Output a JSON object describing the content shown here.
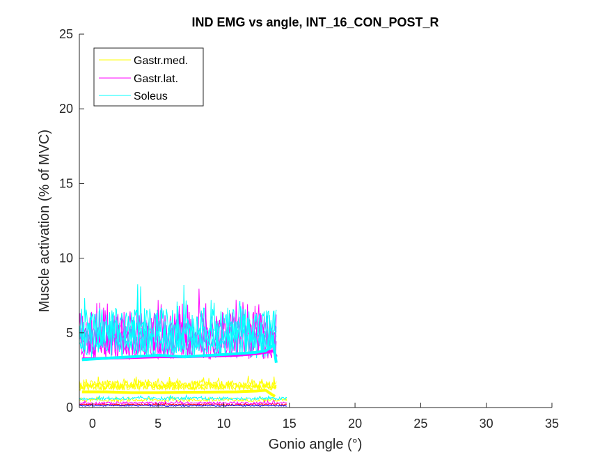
{
  "chart_data": {
    "type": "line",
    "title": "IND EMG vs angle, INT_16_CON_POST_R",
    "xlabel": "Gonio angle (°)",
    "ylabel": "Muscle activation (% of MVC)",
    "xlim": [
      -1,
      35
    ],
    "ylim": [
      0,
      25
    ],
    "xticks": [
      0,
      5,
      10,
      15,
      20,
      25,
      30,
      35
    ],
    "yticks": [
      0,
      5,
      10,
      15,
      20,
      25
    ],
    "grid": false,
    "legend_position": "top-left",
    "series": [
      {
        "name": "Gastr.med.",
        "color": "#ffff00",
        "mean_x": [
          -0.8,
          1,
          3,
          5,
          7,
          9,
          11,
          12.5,
          13.2,
          13.7,
          13.9
        ],
        "mean_y": [
          1.05,
          1.05,
          1.0,
          1.0,
          1.02,
          1.03,
          1.05,
          1.1,
          1.15,
          0.85,
          0.75
        ],
        "noisy_traces": [
          {
            "level": 1.55,
            "amp": 0.25,
            "x_end": 14.0
          },
          {
            "level": 1.45,
            "amp": 0.25,
            "x_end": 14.0
          },
          {
            "level": 1.35,
            "amp": 0.2,
            "x_end": 14.0
          },
          {
            "level": 0.5,
            "amp": 0.1,
            "x_end": 14.8
          }
        ]
      },
      {
        "name": "Gastr.lat.",
        "color": "#ff00ff",
        "mean_x": [
          -0.8,
          1,
          3,
          5,
          7,
          9,
          11,
          12.5,
          13.2,
          13.8,
          14.0
        ],
        "mean_y": [
          3.25,
          3.3,
          3.35,
          3.4,
          3.4,
          3.45,
          3.5,
          3.6,
          3.7,
          3.8,
          3.4
        ],
        "noisy_traces": [
          {
            "level": 5.2,
            "amp": 1.2,
            "x_end": 14.0
          },
          {
            "level": 4.6,
            "amp": 1.1,
            "x_end": 14.0
          },
          {
            "level": 4.2,
            "amp": 1.0,
            "x_end": 14.0
          },
          {
            "level": 0.3,
            "amp": 0.08,
            "x_end": 14.8
          }
        ]
      },
      {
        "name": "Soleus",
        "color": "#00ffff",
        "mean_x": [
          -0.8,
          1,
          3,
          5,
          7,
          9,
          11,
          12.5,
          13.2,
          13.8,
          14.0
        ],
        "mean_y": [
          3.2,
          3.3,
          3.4,
          3.5,
          3.4,
          3.5,
          3.6,
          3.7,
          3.8,
          4.2,
          3.0
        ],
        "noisy_traces": [
          {
            "level": 5.5,
            "amp": 1.2,
            "x_end": 14.0
          },
          {
            "level": 4.8,
            "amp": 1.1,
            "x_end": 14.0
          },
          {
            "level": 4.3,
            "amp": 1.0,
            "x_end": 14.0
          },
          {
            "level": 0.6,
            "amp": 0.1,
            "x_end": 14.8
          }
        ]
      }
    ],
    "extra_traces": [
      {
        "color": "#ff0000",
        "level": 0.2,
        "amp": 0.05,
        "x_end": 14.8
      },
      {
        "color": "#0000ff",
        "level": 0.12,
        "amp": 0.04,
        "x_end": 14.8
      }
    ]
  }
}
